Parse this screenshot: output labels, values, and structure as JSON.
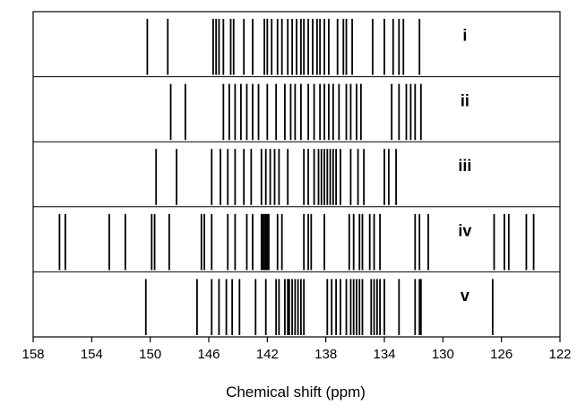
{
  "chart_data": {
    "type": "spectrum-stick",
    "xlabel": "Chemical shift (ppm)",
    "xlim": [
      158,
      122
    ],
    "xticks": [
      158,
      154,
      150,
      146,
      142,
      138,
      134,
      130,
      126,
      122
    ],
    "grid": false,
    "series": [
      {
        "label": "i",
        "peaks": [
          150.2,
          148.8,
          145.7,
          145.5,
          145.3,
          145.0,
          144.5,
          144.3,
          143.6,
          143.0,
          142.2,
          142.0,
          141.7,
          141.3,
          141.0,
          140.6,
          140.3,
          140.0,
          139.7,
          139.5,
          139.2,
          138.9,
          138.6,
          138.4,
          138.1,
          137.8,
          137.2,
          136.8,
          136.6,
          136.2,
          134.8,
          134.0,
          133.4,
          133.0,
          132.7,
          131.6
        ]
      },
      {
        "label": "ii",
        "peaks": [
          148.6,
          147.6,
          145.0,
          144.6,
          144.2,
          143.8,
          143.4,
          143.0,
          142.6,
          142.0,
          141.4,
          140.8,
          140.4,
          140.1,
          139.7,
          139.2,
          138.8,
          138.4,
          138.1,
          137.8,
          137.5,
          137.1,
          136.6,
          136.3,
          135.9,
          135.6,
          133.5,
          133.0,
          132.5,
          132.2,
          131.9,
          131.5
        ]
      },
      {
        "label": "iii",
        "peaks": [
          149.6,
          148.2,
          145.8,
          145.2,
          144.7,
          144.2,
          143.6,
          143.1,
          142.4,
          142.1,
          141.8,
          141.5,
          141.2,
          140.6,
          139.5,
          139.2,
          138.8,
          138.5,
          138.3,
          138.1,
          137.9,
          137.7,
          137.5,
          137.3,
          137.0,
          136.3,
          135.8,
          135.4,
          134.0,
          133.7,
          133.2
        ]
      },
      {
        "label": "iv",
        "peaks": [
          156.2,
          155.8,
          152.8,
          151.7,
          149.9,
          149.7,
          148.7,
          146.5,
          146.3,
          145.8,
          144.7,
          144.2,
          143.4,
          143.0,
          142.4,
          142.3,
          142.2,
          142.1,
          142.0,
          141.9,
          141.3,
          141.0,
          139.5,
          139.2,
          139.0,
          138.1,
          136.4,
          136.1,
          135.7,
          135.5,
          135.0,
          134.7,
          134.3,
          131.9,
          131.6,
          131.0,
          126.5,
          125.8,
          125.5,
          124.3,
          123.8
        ]
      },
      {
        "label": "v",
        "peaks": [
          150.3,
          146.8,
          145.8,
          145.3,
          144.8,
          144.4,
          143.9,
          142.8,
          142.1,
          141.4,
          141.2,
          140.8,
          140.6,
          140.5,
          140.3,
          140.1,
          139.9,
          139.7,
          139.5,
          137.9,
          137.6,
          137.3,
          137.0,
          136.6,
          136.3,
          136.1,
          135.9,
          135.7,
          135.5,
          134.9,
          134.7,
          134.5,
          134.3,
          134.0,
          133.0,
          131.9,
          131.6,
          131.5,
          126.6
        ]
      }
    ]
  }
}
